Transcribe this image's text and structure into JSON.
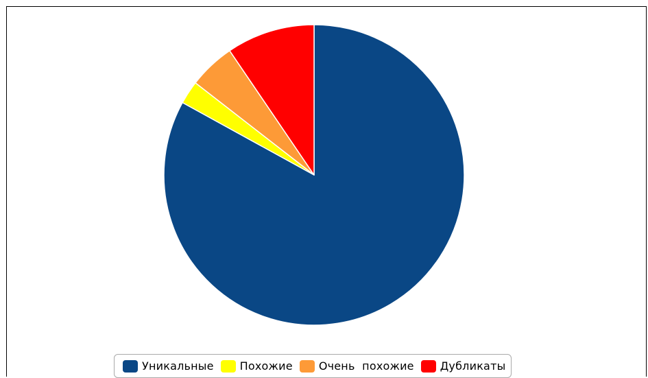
{
  "chart_data": {
    "type": "pie",
    "title": "",
    "slices": [
      {
        "name": "Уникальные",
        "value": 83.0,
        "color": "#0a4785"
      },
      {
        "name": "Похожие",
        "value": 2.5,
        "color": "#ffff00"
      },
      {
        "name": "Очень  похожие",
        "value": 5.0,
        "color": "#fd9a37"
      },
      {
        "name": "Дубликаты",
        "value": 9.5,
        "color": "#ff0000"
      }
    ],
    "start": "12 o'clock",
    "direction": "clockwise",
    "legend": "bottom-center",
    "slice_border_color": "#ffffff"
  }
}
